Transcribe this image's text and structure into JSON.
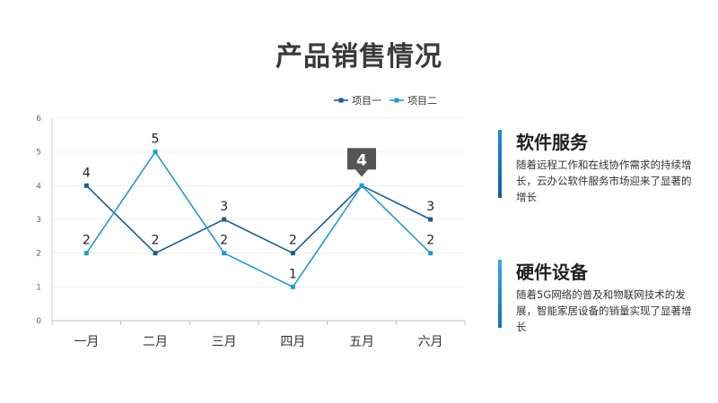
{
  "title": "产品销售情况",
  "colors": {
    "series1": "#175d96",
    "series2": "#1f9ad6",
    "callout": "#555555"
  },
  "chart_data": {
    "type": "line",
    "categories": [
      "一月",
      "二月",
      "三月",
      "四月",
      "五月",
      "六月"
    ],
    "series": [
      {
        "name": "项目一",
        "values": [
          4,
          2,
          3,
          2,
          4,
          3
        ]
      },
      {
        "name": "项目二",
        "values": [
          2,
          5,
          2,
          1,
          4,
          2
        ]
      }
    ],
    "yticks": [
      "0",
      "1",
      "2",
      "3",
      "4",
      "5",
      "6"
    ],
    "ylim": [
      0,
      6
    ],
    "legend": "top-right",
    "grid": true,
    "callout": {
      "label": "4",
      "category_index": 4,
      "value": 4
    }
  },
  "cards": [
    {
      "title": "软件服务",
      "text": "随着远程工作和在线协作需求的持续增长，云办公软件服务市场迎来了显著的增长"
    },
    {
      "title": "硬件设备",
      "text": "随着5G网络的普及和物联网技术的发展，智能家居设备的销量实现了显著增长"
    }
  ]
}
